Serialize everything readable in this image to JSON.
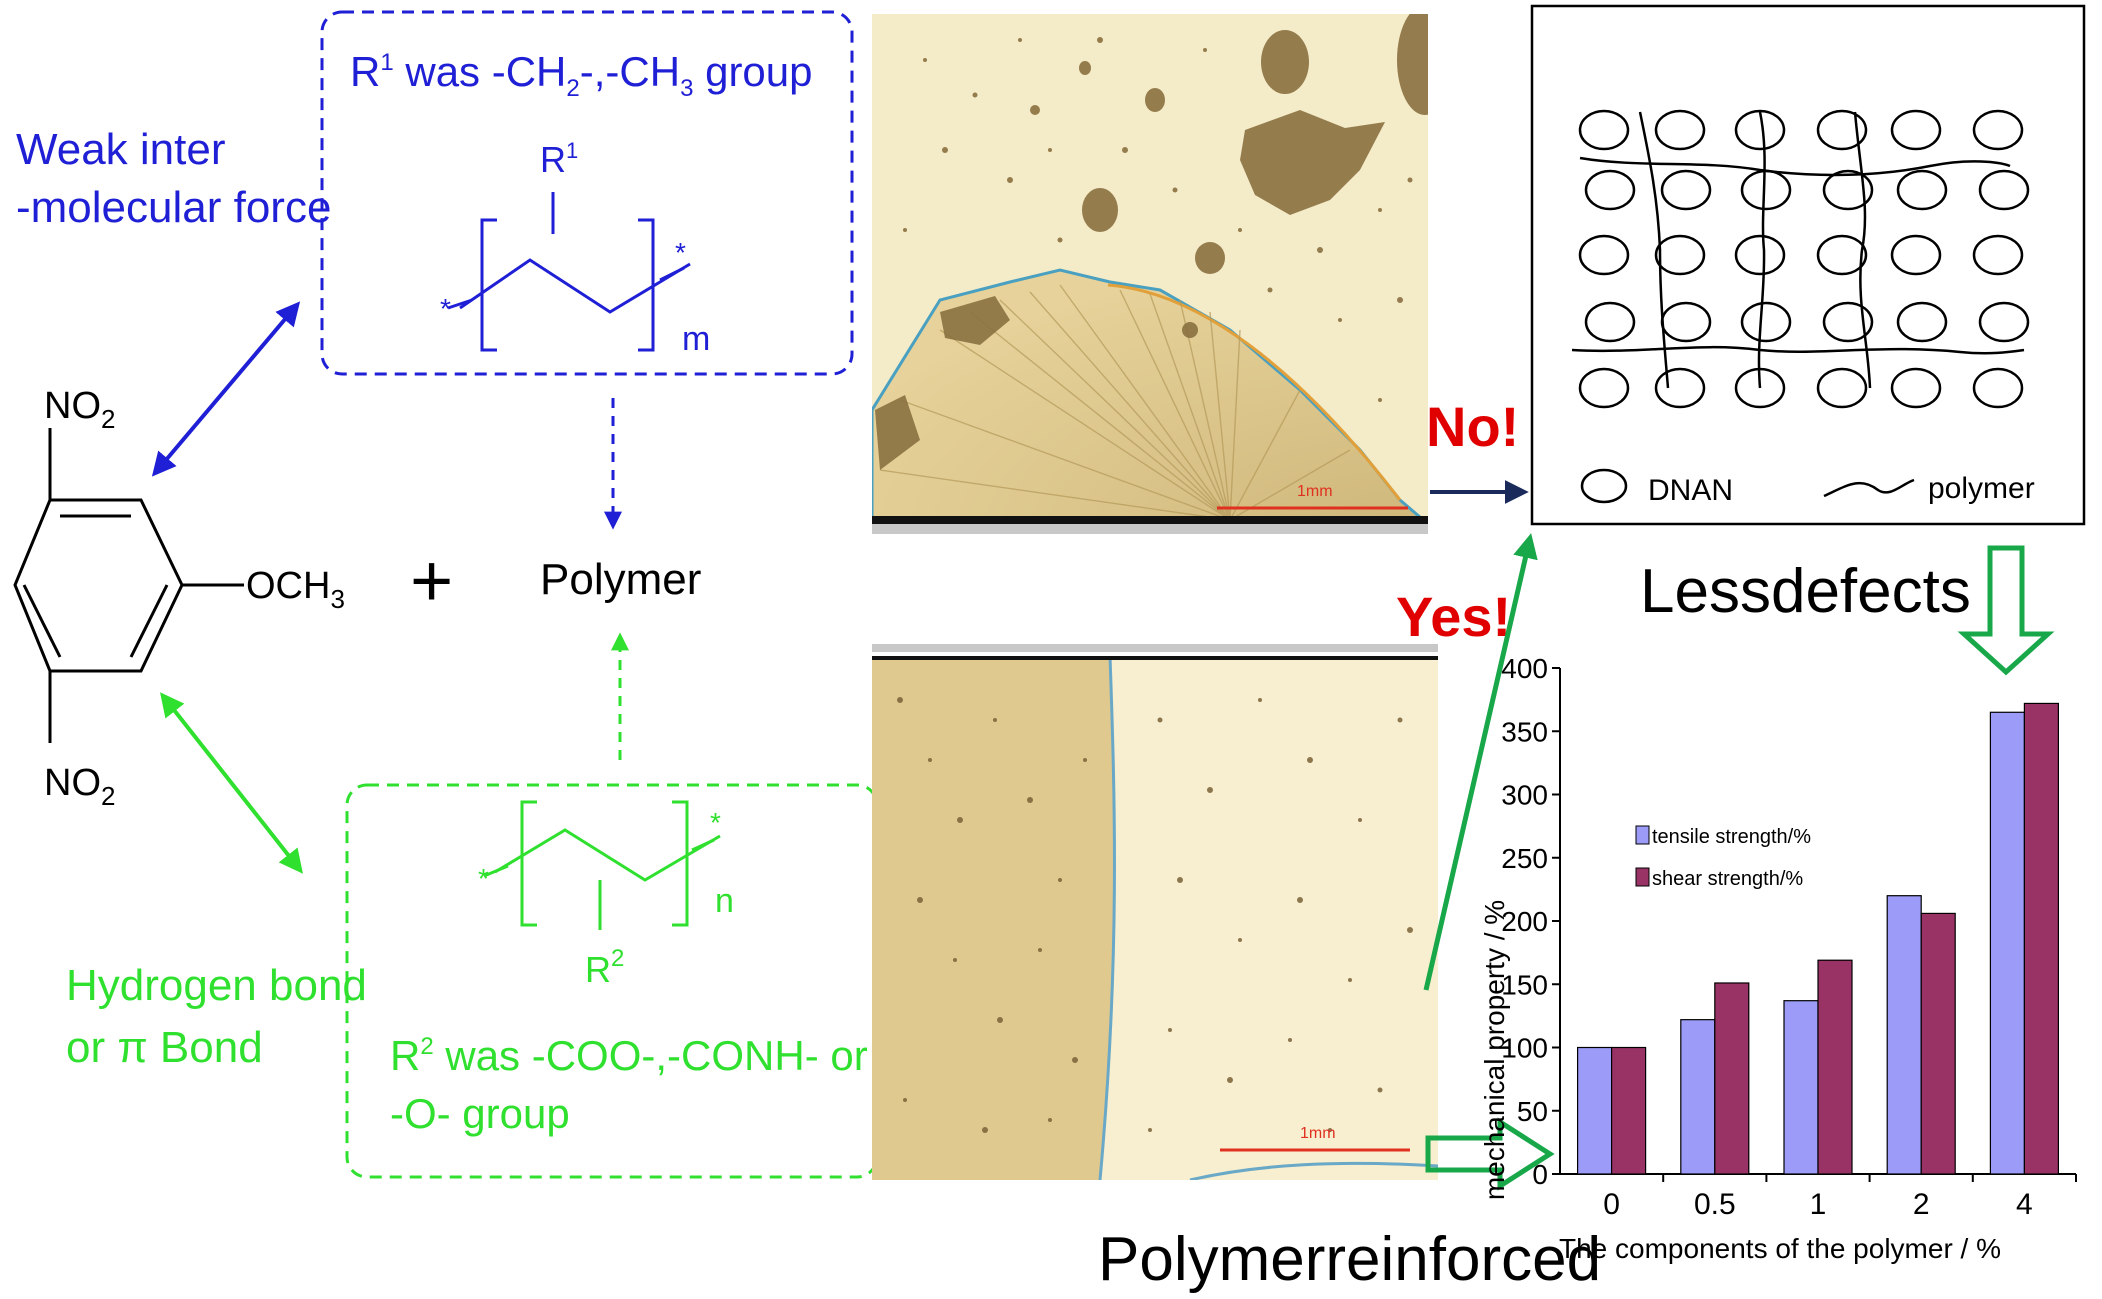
{
  "colors": {
    "blue": "#1f1fd6",
    "green": "#2fe02f",
    "dark_green": "#18a84a",
    "red": "#e00000",
    "navy": "#1a2a5a",
    "bar_tensile": "#9c9cf8",
    "bar_shear": "#993366",
    "micro_dark": "#8a7040",
    "micro_light": "#f6eccb",
    "scale_bar": "#e03020"
  },
  "left": {
    "weak_force": [
      "Weak inter",
      "-molecular force"
    ],
    "hbond": [
      "Hydrogen bond",
      "or  π Bond"
    ],
    "no2": "NO",
    "no2_sub": "2",
    "och3": "OCH",
    "och3_sub": "3",
    "plus": "+",
    "polymer": "Polymer"
  },
  "blue_box": {
    "caption_parts": [
      "R",
      "1",
      " was -CH",
      "2",
      "-,-CH",
      "3",
      " group"
    ],
    "r_label": "R",
    "r_sup": "1",
    "star": "*",
    "m": "m"
  },
  "green_box": {
    "caption_line1_parts": [
      "R",
      "2",
      " was -COO-,-CONH- or"
    ],
    "caption_line2": "-O- group",
    "r_label": "R",
    "r_sub": "2",
    "star": "*",
    "n": "n"
  },
  "micrographs": {
    "scale_label": "1mm"
  },
  "schematic": {
    "legend_dnan": "DNAN",
    "legend_polymer": "polymer"
  },
  "labels": {
    "no": "No!",
    "yes": "Yes!",
    "less_defects": "Lessdefects",
    "polymer_reinforced": "Polymerreinforced"
  },
  "chart_data": {
    "type": "bar",
    "categories": [
      "0",
      "0.5",
      "1",
      "2",
      "4"
    ],
    "series": [
      {
        "name": "tensile strength/%",
        "values": [
          100,
          122,
          137,
          220,
          365
        ]
      },
      {
        "name": "shear strength/%",
        "values": [
          100,
          151,
          169,
          206,
          372
        ]
      }
    ],
    "xlabel": "The components of the polymer / %",
    "ylabel": "mechanical property / %",
    "ylim": [
      0,
      400
    ],
    "yticks": [
      "0",
      "50",
      "100",
      "150",
      "200",
      "250",
      "300",
      "350",
      "400"
    ],
    "legend_position": "upper-left",
    "grid": false
  }
}
